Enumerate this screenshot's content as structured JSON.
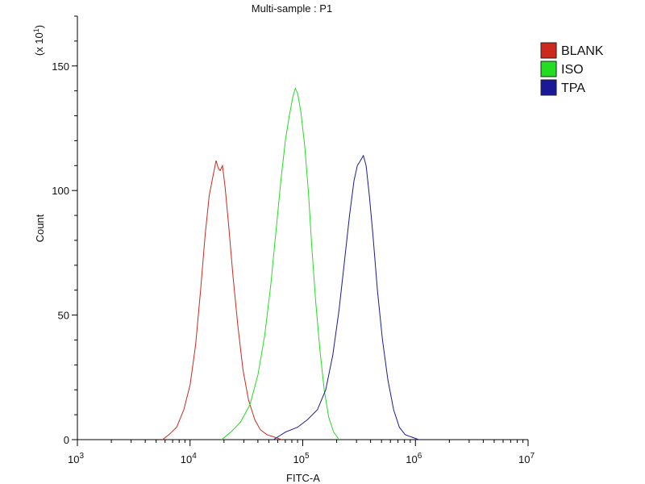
{
  "chart_data": {
    "type": "line",
    "title": "Multi-sample : P1",
    "xlabel": "FITC-A",
    "ylabel": "Count",
    "y_multiplier_label": "(x 10",
    "y_multiplier_exp": "1",
    "x_scale": "log",
    "xlim": [
      1000,
      10000000
    ],
    "ylim": [
      0,
      170
    ],
    "x_ticks": [
      {
        "value": 1000,
        "base": "10",
        "exp": "3"
      },
      {
        "value": 10000,
        "base": "10",
        "exp": "4"
      },
      {
        "value": 100000,
        "base": "10",
        "exp": "5"
      },
      {
        "value": 1000000,
        "base": "10",
        "exp": "6"
      },
      {
        "value": 10000000,
        "base": "10",
        "exp": "7"
      }
    ],
    "y_ticks": [
      "0",
      "50",
      "100",
      "150"
    ],
    "grid": false,
    "legend_position": "top-right",
    "series": [
      {
        "name": "BLANK",
        "color": "#cc2a1e",
        "points": [
          [
            5700,
            0
          ],
          [
            6500,
            2
          ],
          [
            7600,
            5
          ],
          [
            8800,
            12
          ],
          [
            10000,
            22
          ],
          [
            11200,
            38
          ],
          [
            12400,
            60
          ],
          [
            13600,
            82
          ],
          [
            14800,
            98
          ],
          [
            16000,
            106
          ],
          [
            17000,
            112
          ],
          [
            17800,
            109
          ],
          [
            18500,
            108
          ],
          [
            19400,
            110
          ],
          [
            20500,
            101
          ],
          [
            22000,
            86
          ],
          [
            24000,
            66
          ],
          [
            26500,
            46
          ],
          [
            29500,
            28
          ],
          [
            33000,
            16
          ],
          [
            37500,
            8
          ],
          [
            42000,
            4
          ],
          [
            48000,
            2
          ],
          [
            56000,
            1
          ],
          [
            65000,
            0
          ]
        ]
      },
      {
        "name": "ISO",
        "color": "#22dd22",
        "points": [
          [
            19000,
            0
          ],
          [
            23000,
            3
          ],
          [
            28000,
            7
          ],
          [
            34000,
            14
          ],
          [
            40000,
            26
          ],
          [
            46000,
            42
          ],
          [
            52000,
            62
          ],
          [
            58000,
            84
          ],
          [
            64000,
            104
          ],
          [
            70000,
            120
          ],
          [
            76000,
            130
          ],
          [
            82000,
            138
          ],
          [
            86000,
            141
          ],
          [
            90000,
            139
          ],
          [
            96000,
            132
          ],
          [
            104000,
            118
          ],
          [
            112000,
            100
          ],
          [
            120000,
            78
          ],
          [
            130000,
            56
          ],
          [
            142000,
            36
          ],
          [
            155000,
            20
          ],
          [
            170000,
            9
          ],
          [
            188000,
            3
          ],
          [
            210000,
            0
          ]
        ]
      },
      {
        "name": "TPA",
        "color": "#1a1a99",
        "points": [
          [
            55000,
            0
          ],
          [
            70000,
            3
          ],
          [
            90000,
            5
          ],
          [
            110000,
            8
          ],
          [
            135000,
            12
          ],
          [
            160000,
            20
          ],
          [
            185000,
            34
          ],
          [
            210000,
            52
          ],
          [
            235000,
            72
          ],
          [
            260000,
            90
          ],
          [
            285000,
            104
          ],
          [
            305000,
            110
          ],
          [
            325000,
            112
          ],
          [
            345000,
            114
          ],
          [
            365000,
            110
          ],
          [
            390000,
            98
          ],
          [
            420000,
            82
          ],
          [
            460000,
            60
          ],
          [
            510000,
            40
          ],
          [
            570000,
            24
          ],
          [
            640000,
            12
          ],
          [
            720000,
            5
          ],
          [
            810000,
            2
          ],
          [
            930000,
            1
          ],
          [
            1070000,
            0
          ]
        ]
      }
    ]
  }
}
